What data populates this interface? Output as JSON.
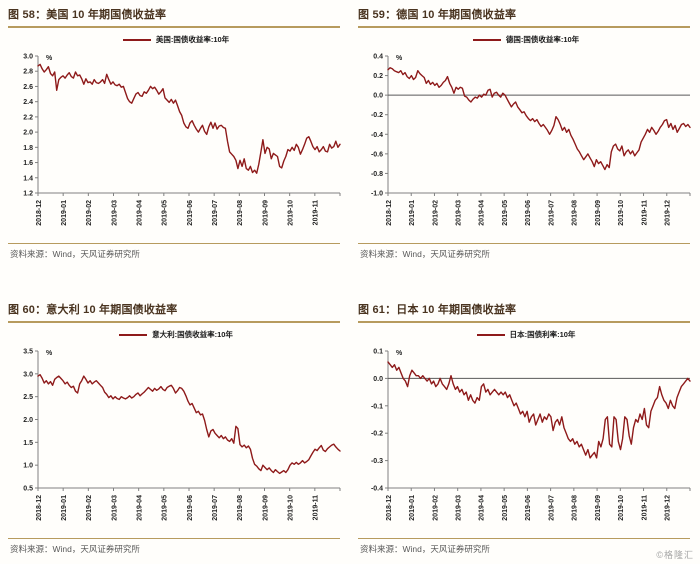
{
  "page": {
    "background": "#fffefb",
    "accent_gold": "#b79b5e",
    "line_color": "#8e1a1a",
    "axis_color": "#808080",
    "zero_line_color": "#595959",
    "watermark": "©格隆汇"
  },
  "chart_data": [
    {
      "id": "fig58",
      "type": "line",
      "title": "图 58：美国 10 年期国债收益率",
      "legend": "美国:国债收益率:10年",
      "unit": "%",
      "ylim": [
        1.2,
        3.0
      ],
      "ystep": 0.2,
      "zero_line": false,
      "grid": false,
      "legend_position": "top-center",
      "source": "资料来源：Wind，天风证券研究所",
      "x_labels": [
        "2018-12",
        "2019-01",
        "2019-02",
        "2019-03",
        "2019-04",
        "2019-05",
        "2019-06",
        "2019-07",
        "2019-08",
        "2019-09",
        "2019-10",
        "2019-11"
      ],
      "values": [
        2.87,
        2.89,
        2.83,
        2.79,
        2.82,
        2.86,
        2.77,
        2.74,
        2.79,
        2.55,
        2.69,
        2.72,
        2.74,
        2.71,
        2.75,
        2.78,
        2.73,
        2.71,
        2.79,
        2.74,
        2.75,
        2.7,
        2.63,
        2.7,
        2.65,
        2.66,
        2.63,
        2.69,
        2.65,
        2.64,
        2.66,
        2.69,
        2.64,
        2.76,
        2.69,
        2.63,
        2.66,
        2.62,
        2.61,
        2.63,
        2.59,
        2.6,
        2.52,
        2.44,
        2.4,
        2.38,
        2.44,
        2.5,
        2.52,
        2.48,
        2.47,
        2.53,
        2.51,
        2.55,
        2.6,
        2.57,
        2.59,
        2.55,
        2.5,
        2.53,
        2.57,
        2.45,
        2.42,
        2.39,
        2.43,
        2.38,
        2.42,
        2.35,
        2.27,
        2.22,
        2.12,
        2.07,
        2.05,
        2.12,
        2.15,
        2.09,
        2.04,
        2.0,
        2.05,
        2.09,
        2.01,
        1.97,
        2.07,
        2.13,
        2.05,
        2.12,
        2.04,
        2.08,
        2.09,
        2.06,
        2.05,
        1.88,
        1.74,
        1.71,
        1.68,
        1.63,
        1.52,
        1.63,
        1.55,
        1.65,
        1.52,
        1.5,
        1.55,
        1.47,
        1.5,
        1.46,
        1.58,
        1.74,
        1.9,
        1.72,
        1.8,
        1.78,
        1.65,
        1.72,
        1.7,
        1.68,
        1.55,
        1.53,
        1.62,
        1.68,
        1.77,
        1.75,
        1.8,
        1.76,
        1.84,
        1.8,
        1.71,
        1.77,
        1.84,
        1.92,
        1.94,
        1.88,
        1.81,
        1.77,
        1.81,
        1.74,
        1.77,
        1.81,
        1.75,
        1.74,
        1.84,
        1.79,
        1.81,
        1.88,
        1.8,
        1.84
      ]
    },
    {
      "id": "fig59",
      "type": "line",
      "title": "图 59：德国 10 年期国债收益率",
      "legend": "德国:国债收益率:10年",
      "unit": "%",
      "ylim": [
        -1.0,
        0.4
      ],
      "ystep": 0.2,
      "zero_line": true,
      "grid": false,
      "legend_position": "top-center",
      "source": "资料来源：Wind，天风证券研究所",
      "x_labels": [
        "2018-12",
        "2019-01",
        "2019-02",
        "2019-03",
        "2019-04",
        "2019-05",
        "2019-06",
        "2019-07",
        "2019-08",
        "2019-09",
        "2019-10",
        "2019-11",
        "2019-12"
      ],
      "values": [
        0.26,
        0.28,
        0.27,
        0.25,
        0.24,
        0.23,
        0.25,
        0.21,
        0.23,
        0.19,
        0.17,
        0.2,
        0.16,
        0.18,
        0.25,
        0.22,
        0.2,
        0.18,
        0.12,
        0.15,
        0.11,
        0.13,
        0.1,
        0.12,
        0.08,
        0.1,
        0.13,
        0.15,
        0.19,
        0.12,
        0.08,
        0.02,
        0.08,
        0.06,
        0.08,
        0.07,
        -0.01,
        -0.02,
        -0.05,
        -0.07,
        -0.04,
        -0.02,
        -0.03,
        0.0,
        -0.02,
        0.01,
        0.0,
        0.05,
        0.06,
        -0.02,
        0.02,
        0.03,
        0.0,
        -0.02,
        0.02,
        0.0,
        -0.04,
        -0.08,
        -0.12,
        -0.09,
        -0.07,
        -0.12,
        -0.15,
        -0.18,
        -0.17,
        -0.21,
        -0.24,
        -0.26,
        -0.24,
        -0.27,
        -0.25,
        -0.29,
        -0.32,
        -0.3,
        -0.33,
        -0.36,
        -0.4,
        -0.36,
        -0.31,
        -0.22,
        -0.25,
        -0.3,
        -0.36,
        -0.33,
        -0.38,
        -0.35,
        -0.41,
        -0.45,
        -0.5,
        -0.55,
        -0.58,
        -0.62,
        -0.66,
        -0.63,
        -0.6,
        -0.64,
        -0.68,
        -0.73,
        -0.66,
        -0.7,
        -0.68,
        -0.72,
        -0.76,
        -0.71,
        -0.74,
        -0.58,
        -0.52,
        -0.5,
        -0.55,
        -0.57,
        -0.52,
        -0.62,
        -0.58,
        -0.56,
        -0.6,
        -0.57,
        -0.62,
        -0.59,
        -0.56,
        -0.48,
        -0.44,
        -0.4,
        -0.35,
        -0.38,
        -0.33,
        -0.36,
        -0.4,
        -0.37,
        -0.33,
        -0.3,
        -0.26,
        -0.25,
        -0.33,
        -0.29,
        -0.35,
        -0.31,
        -0.38,
        -0.34,
        -0.3,
        -0.29,
        -0.32,
        -0.3,
        -0.33
      ]
    },
    {
      "id": "fig60",
      "type": "line",
      "title": "图 60：意大利 10 年期国债收益率",
      "legend": "意大利:国债收益率:10年",
      "unit": "%",
      "ylim": [
        0.5,
        3.5
      ],
      "ystep": 0.5,
      "zero_line": false,
      "grid": false,
      "legend_position": "top-center",
      "source": "资料来源：Wind，天风证券研究所",
      "x_labels": [
        "2018-12",
        "2019-01",
        "2019-02",
        "2019-03",
        "2019-04",
        "2019-05",
        "2019-06",
        "2019-07",
        "2019-08",
        "2019-09",
        "2019-10",
        "2019-11"
      ],
      "values": [
        2.95,
        2.98,
        2.9,
        2.8,
        2.85,
        2.78,
        2.83,
        2.75,
        2.88,
        2.92,
        2.95,
        2.9,
        2.85,
        2.78,
        2.82,
        2.75,
        2.7,
        2.73,
        2.62,
        2.58,
        2.78,
        2.85,
        2.95,
        2.88,
        2.8,
        2.85,
        2.78,
        2.82,
        2.85,
        2.8,
        2.75,
        2.7,
        2.6,
        2.55,
        2.48,
        2.52,
        2.45,
        2.5,
        2.46,
        2.44,
        2.5,
        2.47,
        2.45,
        2.48,
        2.52,
        2.47,
        2.5,
        2.55,
        2.58,
        2.52,
        2.56,
        2.6,
        2.65,
        2.7,
        2.66,
        2.62,
        2.68,
        2.64,
        2.67,
        2.72,
        2.66,
        2.63,
        2.7,
        2.73,
        2.75,
        2.68,
        2.58,
        2.63,
        2.7,
        2.68,
        2.62,
        2.52,
        2.4,
        2.32,
        2.35,
        2.25,
        2.15,
        2.18,
        2.1,
        2.12,
        1.98,
        1.78,
        1.62,
        1.75,
        1.78,
        1.7,
        1.65,
        1.6,
        1.65,
        1.58,
        1.62,
        1.55,
        1.52,
        1.58,
        1.48,
        1.85,
        1.8,
        1.45,
        1.4,
        1.44,
        1.38,
        1.42,
        1.35,
        1.15,
        1.02,
        0.98,
        0.92,
        0.88,
        1.0,
        0.95,
        0.9,
        0.94,
        0.88,
        0.84,
        0.9,
        0.86,
        0.82,
        0.85,
        0.88,
        0.84,
        0.9,
        1.0,
        1.05,
        1.02,
        1.06,
        1.02,
        1.05,
        1.1,
        1.05,
        1.08,
        1.12,
        1.2,
        1.28,
        1.35,
        1.32,
        1.38,
        1.43,
        1.33,
        1.3,
        1.36,
        1.4,
        1.44,
        1.46,
        1.4,
        1.35,
        1.31
      ]
    },
    {
      "id": "fig61",
      "type": "line",
      "title": "图 61：日本 10 年期国债收益率",
      "legend": "日本:国债利率:10年",
      "unit": "%",
      "ylim": [
        -0.4,
        0.1
      ],
      "ystep": 0.1,
      "zero_line": true,
      "grid": false,
      "legend_position": "top-center",
      "source": "资料来源：Wind，天风证券研究所",
      "x_labels": [
        "2018-12",
        "2019-01",
        "2019-02",
        "2019-03",
        "2019-04",
        "2019-05",
        "2019-06",
        "2019-07",
        "2019-08",
        "2019-09",
        "2019-10",
        "2019-11",
        "2019-12"
      ],
      "values": [
        0.06,
        0.05,
        0.04,
        0.05,
        0.03,
        0.04,
        0.02,
        0.0,
        -0.01,
        -0.03,
        0.01,
        0.03,
        0.02,
        0.01,
        0.01,
        0.0,
        0.01,
        0.0,
        -0.01,
        0.0,
        -0.02,
        -0.01,
        -0.03,
        -0.02,
        0.0,
        -0.02,
        -0.03,
        -0.04,
        -0.02,
        0.01,
        -0.02,
        -0.04,
        -0.03,
        -0.05,
        -0.04,
        -0.06,
        -0.05,
        -0.08,
        -0.06,
        -0.08,
        -0.09,
        -0.07,
        -0.08,
        -0.03,
        -0.02,
        -0.05,
        -0.04,
        -0.06,
        -0.05,
        -0.04,
        -0.05,
        -0.06,
        -0.05,
        -0.06,
        -0.05,
        -0.07,
        -0.06,
        -0.08,
        -0.1,
        -0.09,
        -0.11,
        -0.13,
        -0.12,
        -0.14,
        -0.12,
        -0.16,
        -0.14,
        -0.13,
        -0.17,
        -0.15,
        -0.13,
        -0.16,
        -0.14,
        -0.15,
        -0.13,
        -0.14,
        -0.19,
        -0.16,
        -0.15,
        -0.17,
        -0.14,
        -0.18,
        -0.2,
        -0.22,
        -0.23,
        -0.22,
        -0.24,
        -0.23,
        -0.25,
        -0.24,
        -0.26,
        -0.28,
        -0.26,
        -0.29,
        -0.28,
        -0.27,
        -0.29,
        -0.23,
        -0.25,
        -0.22,
        -0.15,
        -0.14,
        -0.24,
        -0.25,
        -0.14,
        -0.15,
        -0.23,
        -0.26,
        -0.22,
        -0.14,
        -0.15,
        -0.21,
        -0.24,
        -0.18,
        -0.15,
        -0.16,
        -0.13,
        -0.15,
        -0.11,
        -0.17,
        -0.18,
        -0.12,
        -0.1,
        -0.08,
        -0.07,
        -0.03,
        -0.06,
        -0.08,
        -0.09,
        -0.11,
        -0.08,
        -0.1,
        -0.11,
        -0.07,
        -0.05,
        -0.03,
        -0.02,
        -0.01,
        0.0,
        -0.01
      ]
    }
  ]
}
